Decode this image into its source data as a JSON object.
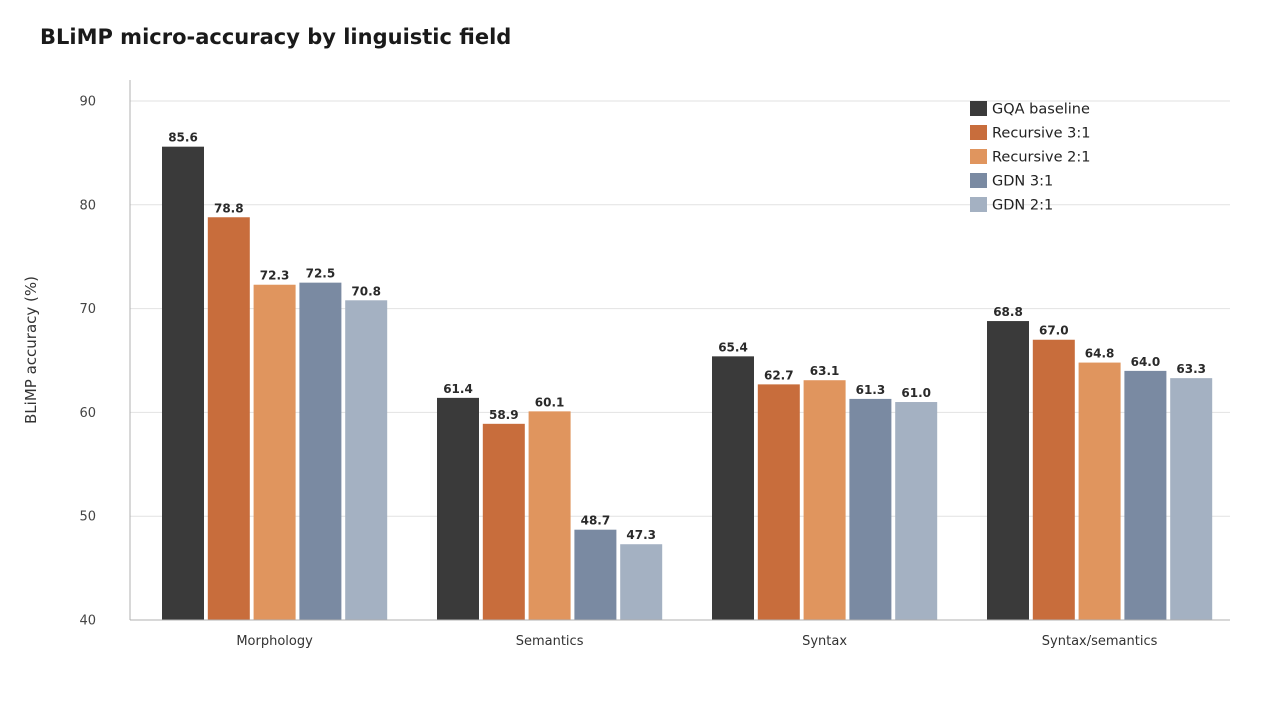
{
  "chart_data": {
    "type": "bar",
    "title": "BLiMP micro-accuracy by linguistic field",
    "ylabel": "BLiMP accuracy (%)",
    "xlabel": "",
    "ylim": [
      40,
      92
    ],
    "yticks": [
      40,
      50,
      60,
      70,
      80,
      90
    ],
    "grid": true,
    "legend_position": "top-right",
    "categories": [
      "Morphology",
      "Semantics",
      "Syntax",
      "Syntax/semantics"
    ],
    "series": [
      {
        "name": "GQA baseline",
        "color": "#3a3a3a",
        "values": [
          85.6,
          61.4,
          65.4,
          68.8
        ]
      },
      {
        "name": "Recursive 3:1",
        "color": "#c86d3c",
        "values": [
          78.8,
          58.9,
          62.7,
          67.0
        ]
      },
      {
        "name": "Recursive 2:1",
        "color": "#e0955e",
        "values": [
          72.3,
          60.1,
          63.1,
          64.8
        ]
      },
      {
        "name": "GDN 3:1",
        "color": "#7a8aa2",
        "values": [
          72.5,
          48.7,
          61.3,
          64.0
        ]
      },
      {
        "name": "GDN 2:1",
        "color": "#a4b1c2",
        "values": [
          70.8,
          47.3,
          61.0,
          63.3
        ]
      }
    ]
  }
}
